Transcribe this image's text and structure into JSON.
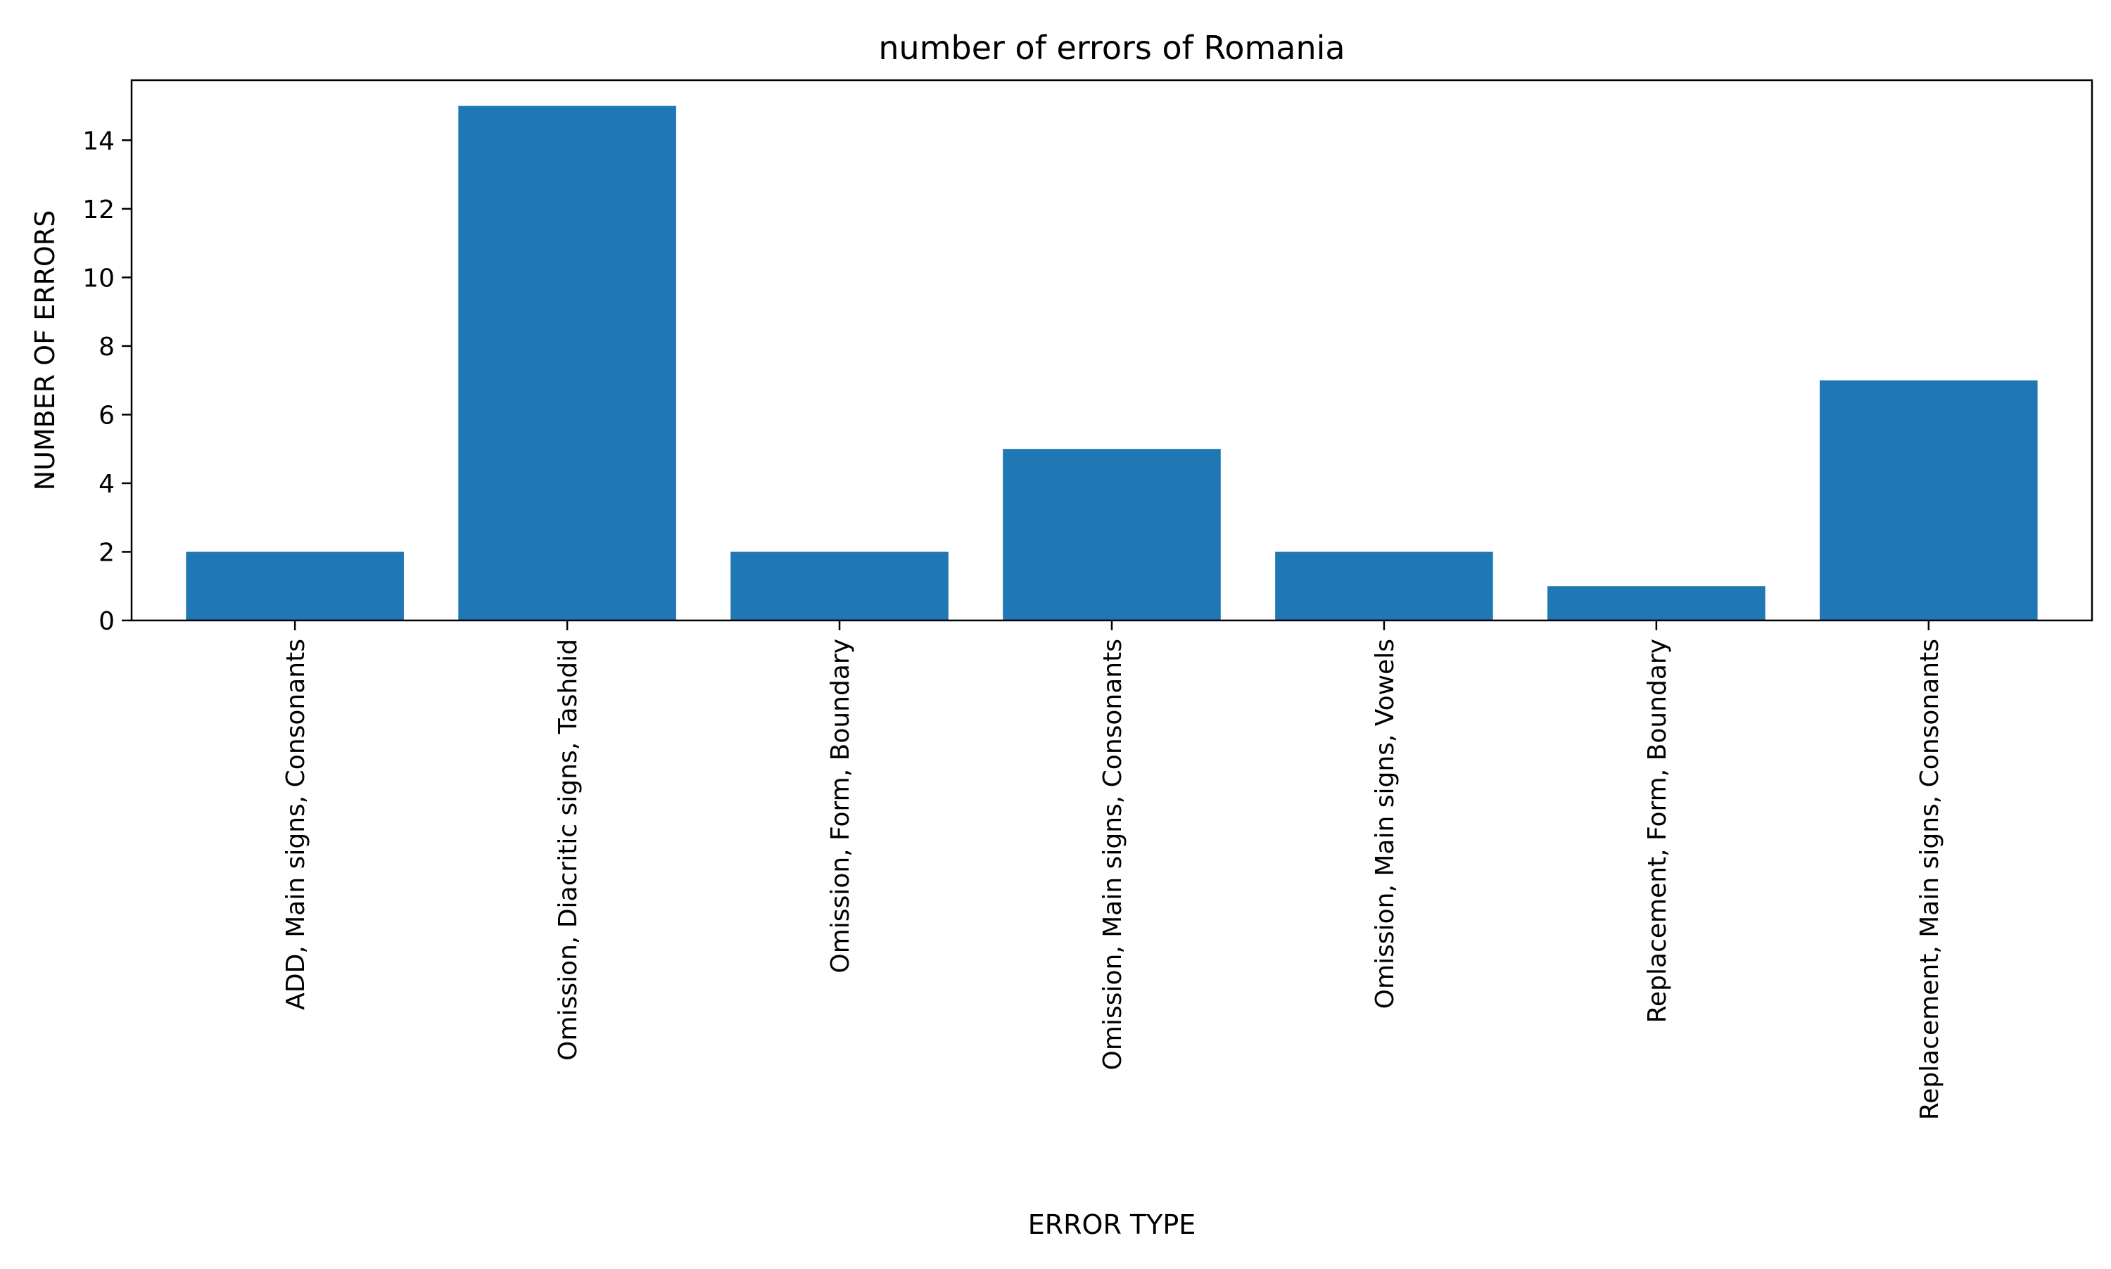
{
  "chart_data": {
    "type": "bar",
    "title": "number of errors of Romania",
    "xlabel": "ERROR TYPE",
    "ylabel": "NUMBER OF ERRORS",
    "categories": [
      "ADD, Main signs, Consonants",
      "Omission, Diacritic signs, Tashdid",
      "Omission, Form, Boundary",
      "Omission, Main signs, Consonants",
      "Omission, Main signs, Vowels",
      "Replacement, Form, Boundary",
      "Replacement, Main signs, Consonants"
    ],
    "values": [
      2,
      15,
      2,
      5,
      2,
      1,
      7
    ],
    "ylim": [
      0,
      15.75
    ],
    "yticks": [
      0,
      2,
      4,
      6,
      8,
      10,
      12,
      14
    ],
    "bar_color": "#1f77b4",
    "grid": false,
    "legend": "none"
  }
}
